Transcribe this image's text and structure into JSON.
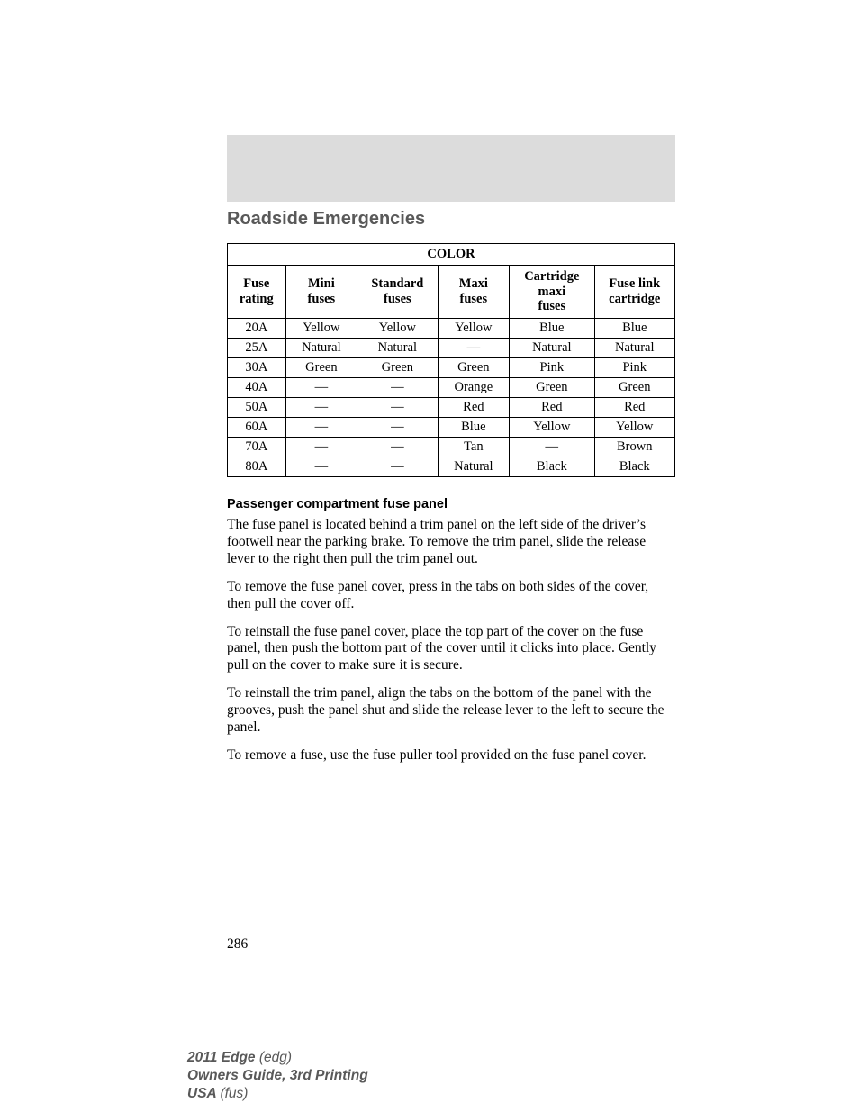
{
  "section_title": "Roadside Emergencies",
  "table": {
    "title": "COLOR",
    "columns": [
      {
        "l1": "Fuse",
        "l2": "rating"
      },
      {
        "l1": "Mini",
        "l2": "fuses"
      },
      {
        "l1": "Standard",
        "l2": "fuses"
      },
      {
        "l1": "Maxi",
        "l2": "fuses"
      },
      {
        "l1": "Cartridge",
        "l2": "maxi",
        "l3": "fuses"
      },
      {
        "l1": "Fuse link",
        "l2": "cartridge"
      }
    ],
    "rows": [
      [
        "20A",
        "Yellow",
        "Yellow",
        "Yellow",
        "Blue",
        "Blue"
      ],
      [
        "25A",
        "Natural",
        "Natural",
        "—",
        "Natural",
        "Natural"
      ],
      [
        "30A",
        "Green",
        "Green",
        "Green",
        "Pink",
        "Pink"
      ],
      [
        "40A",
        "—",
        "—",
        "Orange",
        "Green",
        "Green"
      ],
      [
        "50A",
        "—",
        "—",
        "Red",
        "Red",
        "Red"
      ],
      [
        "60A",
        "—",
        "—",
        "Blue",
        "Yellow",
        "Yellow"
      ],
      [
        "70A",
        "—",
        "—",
        "Tan",
        "—",
        "Brown"
      ],
      [
        "80A",
        "—",
        "—",
        "Natural",
        "Black",
        "Black"
      ]
    ]
  },
  "subheading": "Passenger compartment fuse panel",
  "paragraphs": [
    "The fuse panel is located behind a trim panel on the left side of the driver’s footwell near the parking brake. To remove the trim panel, slide the release lever to the right then pull the trim panel out.",
    "To remove the fuse panel cover, press in the tabs on both sides of the cover, then pull the cover off.",
    "To reinstall the fuse panel cover, place the top part of the cover on the fuse panel, then push the bottom part of the cover until it clicks into place. Gently pull on the cover to make sure it is secure.",
    "To reinstall the trim panel, align the tabs on the bottom of the panel with the grooves, push the panel shut and slide the release lever to the left to secure the panel.",
    "To remove a fuse, use the fuse puller tool provided on the fuse panel cover."
  ],
  "page_number": "286",
  "footer": {
    "line1_bold": "2011 Edge ",
    "line1_rest": "(edg)",
    "line2": "Owners Guide, 3rd Printing",
    "line3_bold": "USA ",
    "line3_rest": "(fus)"
  }
}
